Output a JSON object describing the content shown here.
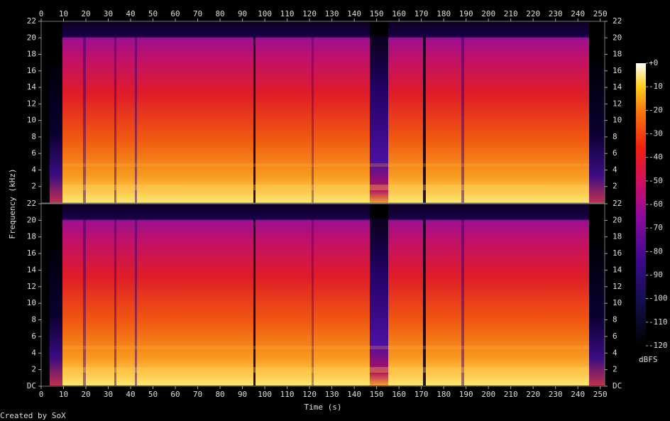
{
  "chart_data": {
    "type": "spectrogram",
    "x_label": "Time (s)",
    "y_label": "Frequency (kHz)",
    "footer": "Created by SoX",
    "xlim": [
      0,
      252
    ],
    "xticks": [
      0,
      10,
      20,
      30,
      40,
      50,
      60,
      70,
      80,
      90,
      100,
      110,
      120,
      130,
      140,
      150,
      160,
      170,
      180,
      190,
      200,
      210,
      220,
      230,
      240,
      250
    ],
    "panels": [
      {
        "ylim": [
          0,
          22
        ],
        "yticks": [
          2,
          4,
          6,
          8,
          10,
          12,
          14,
          16,
          18,
          20,
          22
        ]
      },
      {
        "ylim": [
          0,
          22
        ],
        "yticks": [
          {
            "value": 0,
            "label": "DC"
          },
          2,
          4,
          6,
          8,
          10,
          12,
          14,
          16,
          18,
          20,
          22
        ]
      }
    ],
    "colorbar": {
      "label": "dBFS",
      "clim": [
        -120,
        0
      ],
      "cticks": [
        {
          "value": 0,
          "label": "+0"
        },
        -10,
        -20,
        -30,
        -40,
        -50,
        -60,
        -70,
        -80,
        -90,
        -100,
        -110,
        -120
      ]
    }
  }
}
